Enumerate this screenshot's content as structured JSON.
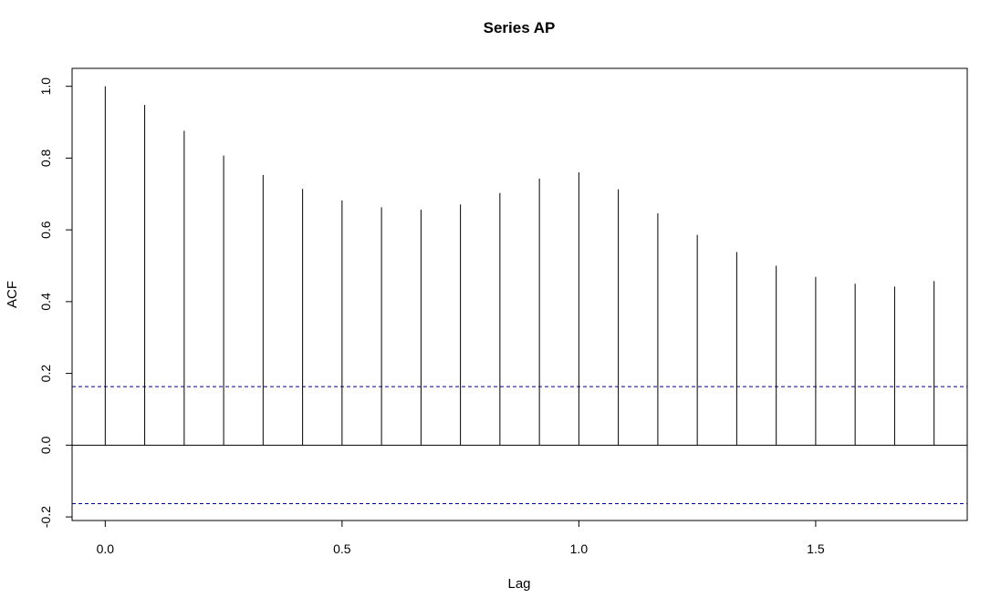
{
  "chart_data": {
    "type": "bar",
    "title": "Series  AP",
    "xlabel": "Lag",
    "ylabel": "ACF",
    "x": [
      0.0,
      0.0833,
      0.1667,
      0.25,
      0.3333,
      0.4167,
      0.5,
      0.5833,
      0.6667,
      0.75,
      0.8333,
      0.9167,
      1.0,
      1.0833,
      1.1667,
      1.25,
      1.3333,
      1.4167,
      1.5,
      1.5833,
      1.6667,
      1.75
    ],
    "values": [
      1.0,
      0.948,
      0.876,
      0.807,
      0.753,
      0.714,
      0.682,
      0.663,
      0.656,
      0.671,
      0.703,
      0.743,
      0.76,
      0.713,
      0.646,
      0.586,
      0.538,
      0.5,
      0.469,
      0.45,
      0.442,
      0.457
    ],
    "confidence_bound": 0.163,
    "xlim": [
      -0.07,
      1.82
    ],
    "ylim": [
      -0.21,
      1.05
    ],
    "x_ticks": [
      0.0,
      0.5,
      1.0,
      1.5
    ],
    "x_tick_labels": [
      "0.0",
      "0.5",
      "1.0",
      "1.5"
    ],
    "y_ticks": [
      -0.2,
      0.0,
      0.2,
      0.4,
      0.6,
      0.8,
      1.0
    ],
    "y_tick_labels": [
      "-0.2",
      "0.0",
      "0.2",
      "0.4",
      "0.6",
      "0.8",
      "1.0"
    ],
    "grid": false,
    "colors": {
      "bars": "#000000",
      "confidence_lines": "#00008b",
      "zero_line": "#000000",
      "frame": "#000000"
    }
  }
}
